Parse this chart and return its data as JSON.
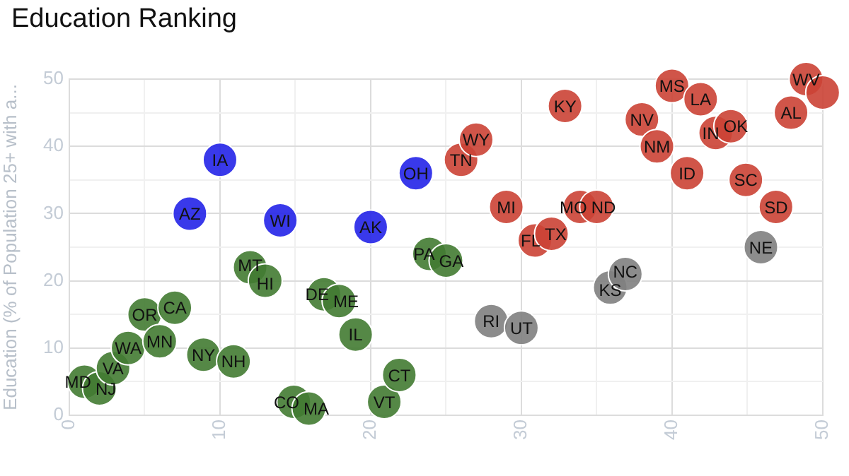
{
  "chart_data": {
    "type": "scatter",
    "title": "Education Ranking",
    "ylabel": "Education (% of Population 25+ with a...",
    "xlim": [
      0,
      50
    ],
    "ylim": [
      0,
      50
    ],
    "xticks": [
      0,
      {
        "value": 5,
        "label": null
      },
      10,
      {
        "value": 15,
        "label": null
      },
      20,
      {
        "value": 25,
        "label": null
      },
      30,
      {
        "value": 35,
        "label": null
      },
      40,
      {
        "value": 45,
        "label": null
      },
      50
    ],
    "yticks": [
      0,
      {
        "value": 5,
        "label": null
      },
      10,
      {
        "value": 15,
        "label": null
      },
      20,
      {
        "value": 25,
        "label": null
      },
      30,
      {
        "value": 35,
        "label": null
      },
      40,
      {
        "value": 45,
        "label": null
      },
      50
    ],
    "grid": true,
    "legend": false,
    "marker": "circle",
    "series": [
      {
        "color": "#427b32",
        "x": [
          1,
          2,
          2.9,
          3.9,
          5,
          6,
          7,
          8.9,
          10.9,
          12,
          13,
          14.9,
          15.9,
          16.9,
          17.9,
          19,
          20.9,
          21.9,
          23.9,
          25
        ],
        "values": [
          5,
          4,
          7,
          10,
          15,
          11,
          16,
          9,
          8,
          22,
          20,
          2,
          1,
          18,
          17,
          12,
          2,
          6,
          24,
          23
        ],
        "value_labels": [
          "MD",
          "NJ",
          "VA",
          "WA",
          "OR",
          "MN",
          "CA",
          "NY",
          "NH",
          "MT",
          "HI",
          "CO",
          "MA",
          "DE",
          "ME",
          "IL",
          "VT",
          "CT",
          "PA",
          "GA"
        ]
      },
      {
        "color": "#2323e8",
        "x": [
          8,
          10,
          14,
          20,
          23
        ],
        "values": [
          30,
          38,
          29,
          28,
          36
        ],
        "value_labels": [
          "AZ",
          "IA",
          "WI",
          "AK",
          "OH"
        ]
      },
      {
        "color": "#808080",
        "x": [
          28,
          30,
          35.9,
          36.9,
          45.9
        ],
        "values": [
          14,
          13,
          19,
          21,
          25
        ],
        "value_labels": [
          "RI",
          "UT",
          "KS",
          "NC",
          "NE"
        ]
      },
      {
        "color": "#cb4335",
        "x": [
          26,
          27,
          29,
          30.9,
          32,
          32.9,
          33.9,
          35,
          38,
          39,
          40,
          41,
          41.9,
          42.9,
          43.9,
          44.9,
          46.9,
          47.9,
          48.9,
          50
        ],
        "values": [
          38,
          41,
          31,
          26,
          27,
          46,
          31,
          31,
          44,
          40,
          49,
          36,
          47,
          42,
          43,
          35,
          31,
          45,
          50,
          48
        ],
        "value_labels": [
          "TN",
          "WY",
          "MI",
          "FL",
          "TX",
          "KY",
          "MO",
          "ND",
          "NV",
          "NM",
          "MS",
          "ID",
          "LA",
          "IN",
          "OK",
          "SC",
          "SD",
          "AL",
          "WV",
          null
        ]
      }
    ]
  }
}
